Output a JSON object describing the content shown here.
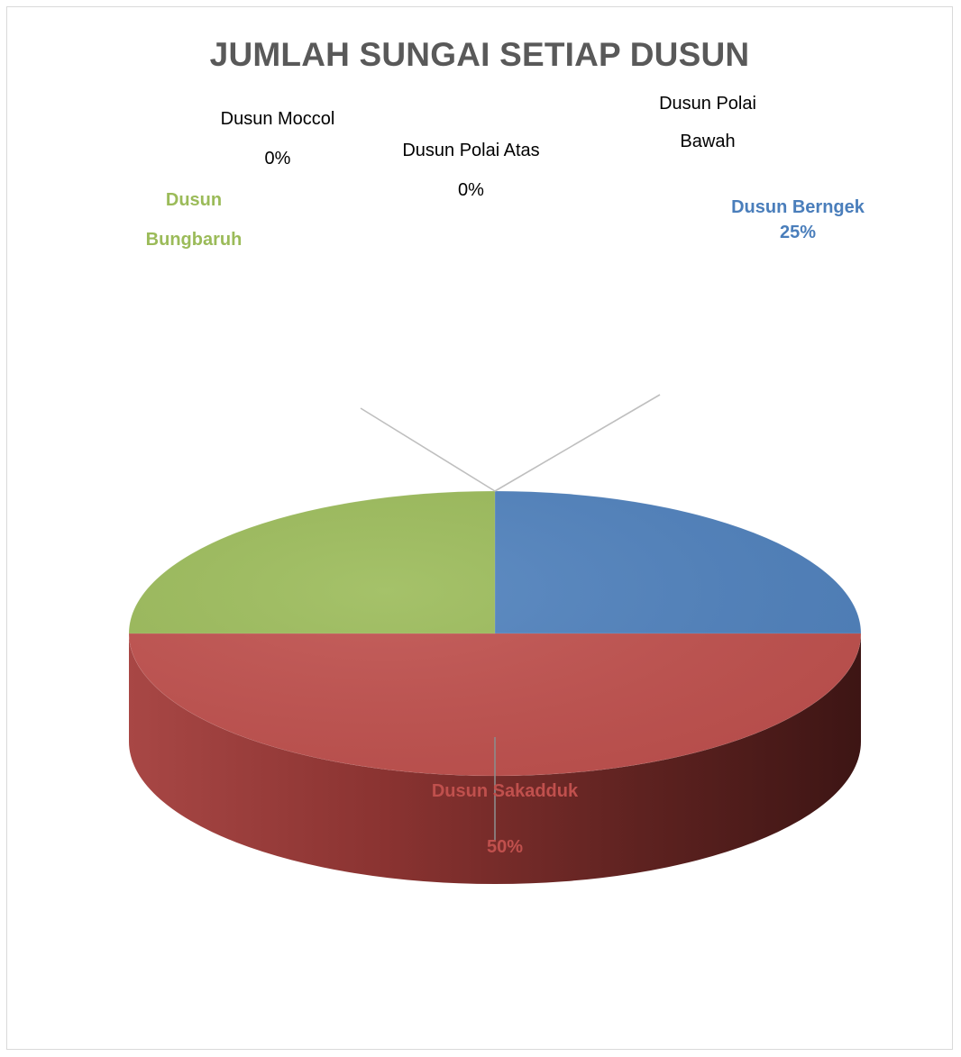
{
  "chart_data": {
    "type": "pie",
    "title": "JUMLAH SUNGAI SETIAP DUSUN",
    "categories": [
      "Dusun Berngek",
      "Dusun Sakadduk",
      "Dusun Bungbaruh",
      "Dusun Moccol",
      "Dusun Polai Atas",
      "Dusun Polai Bawah"
    ],
    "values": [
      25,
      50,
      25,
      0,
      0,
      0
    ],
    "series_colors": [
      "#4f81bd",
      "#c0504d",
      "#9bbb59",
      "#8064a2",
      "#4bacc6",
      "#f79646"
    ],
    "data_labels": [
      {
        "line1": "Dusun Berngek",
        "line2": "25%"
      },
      {
        "line1": "Dusun Sakadduk",
        "line2": "50%"
      },
      {
        "line1": "Dusun",
        "line2": "Bungbaruh"
      },
      {
        "line1": "Dusun Moccol",
        "line2": "0%"
      },
      {
        "line1": "Dusun Polai Atas",
        "line2": "0%"
      },
      {
        "line1": "Dusun Polai",
        "line2": "Bawah"
      }
    ],
    "style": "3d-pie",
    "legend": "none"
  }
}
